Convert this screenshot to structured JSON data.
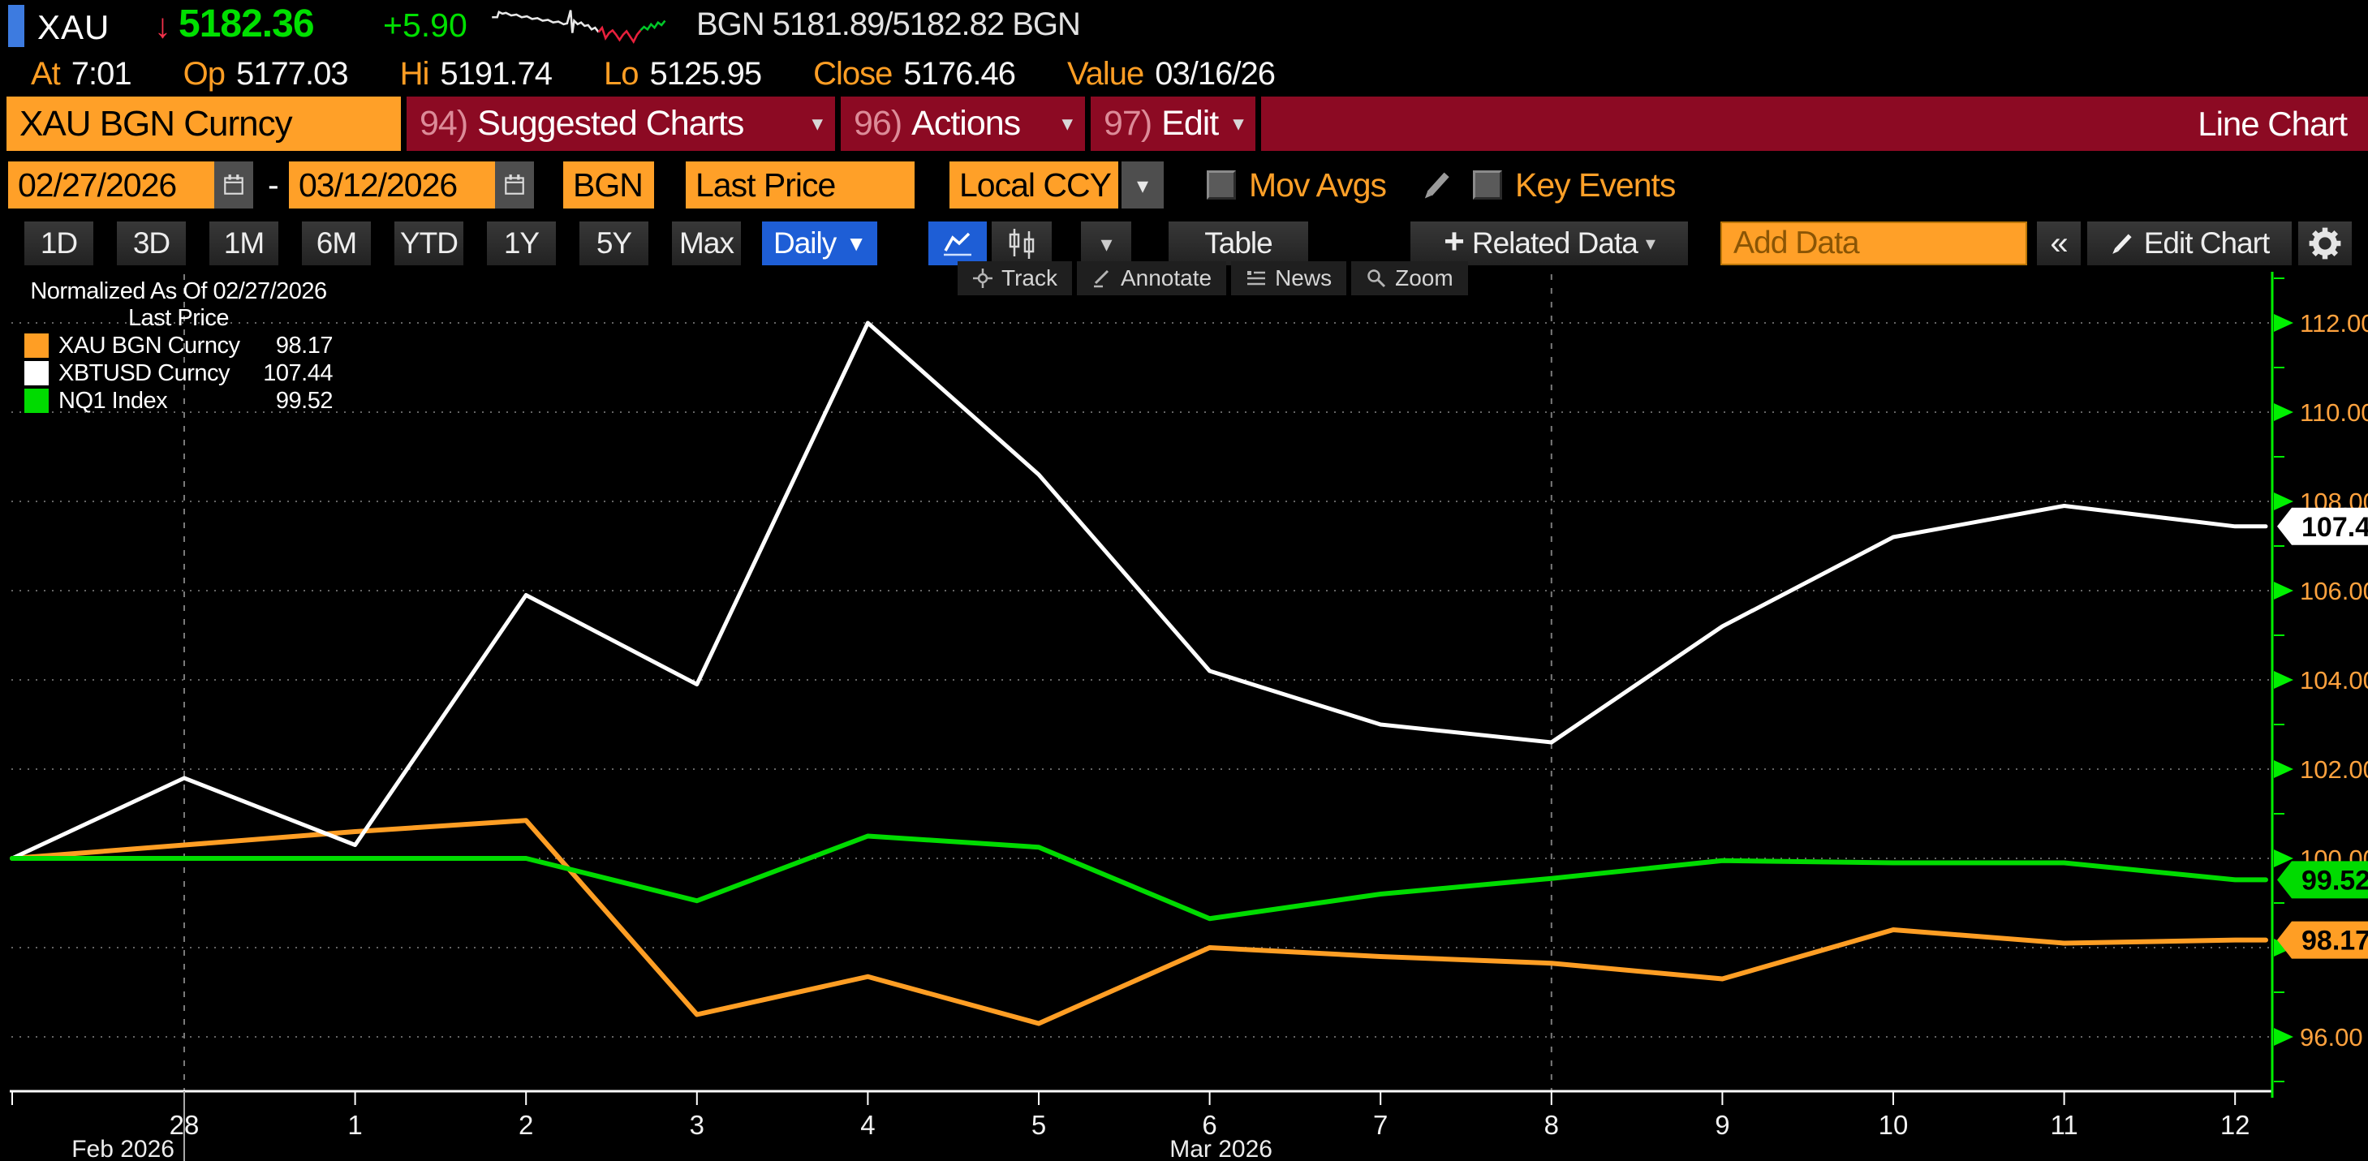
{
  "header": {
    "ticker": "XAU",
    "price": "5182.36",
    "change": "+5.90",
    "quote": "BGN 5181.89/5182.82 BGN",
    "stats": [
      {
        "label": "At",
        "value": "7:01"
      },
      {
        "label": "Op",
        "value": "5177.03"
      },
      {
        "label": "Hi",
        "value": "5191.74"
      },
      {
        "label": "Lo",
        "value": "5125.95"
      },
      {
        "label": "Close",
        "value": "5176.46"
      },
      {
        "label": "Value",
        "value": "03/16/26"
      }
    ]
  },
  "menubar": {
    "security": "XAU BGN Curncy",
    "items": [
      {
        "num": "94)",
        "label": "Suggested Charts"
      },
      {
        "num": "96)",
        "label": "Actions"
      },
      {
        "num": "97)",
        "label": "Edit"
      }
    ],
    "view_label": "Line Chart",
    "bg": "#8C0A23"
  },
  "fields": {
    "date_from": "02/27/2026",
    "date_separator": "-",
    "date_to": "03/12/2026",
    "source": "BGN",
    "price_field": "Last Price",
    "currency": "Local CCY",
    "mov_avgs_label": "Mov Avgs",
    "key_events_label": "Key Events"
  },
  "toolbar": {
    "ranges": [
      "1D",
      "3D",
      "1M",
      "6M",
      "YTD",
      "1Y",
      "5Y",
      "Max"
    ],
    "period": "Daily",
    "table_label": "Table",
    "related_data_label": "Related Data",
    "add_data_placeholder": "Add Data",
    "edit_chart_label": "Edit Chart"
  },
  "chart_tools": [
    {
      "label": "Track"
    },
    {
      "label": "Annotate"
    },
    {
      "label": "News"
    },
    {
      "label": "Zoom"
    }
  ],
  "legend": {
    "title": "Normalized As Of 02/27/2026",
    "subtitle": "Last Price",
    "series": [
      {
        "name": "XAU BGN Curncy",
        "value": "98.17",
        "color": "#FF9E24"
      },
      {
        "name": "XBTUSD Curncy",
        "value": "107.44",
        "color": "#FFFFFF"
      },
      {
        "name": "NQ1 Index",
        "value": "99.52",
        "color": "#00DB00"
      }
    ]
  },
  "icons": {
    "dropdown_arrow": "▾",
    "daily_caret": "▼",
    "down_arrow": "↓",
    "collapse": "«",
    "plus": "+"
  },
  "chart_data": {
    "type": "line",
    "title": "Normalized As Of 02/27/2026",
    "normalize_basis": "Last Price",
    "dates": [
      "02/27",
      "02/28",
      "03/01",
      "03/02",
      "03/03",
      "03/04",
      "03/05",
      "03/06",
      "03/07",
      "03/08",
      "03/09",
      "03/10",
      "03/11",
      "03/12"
    ],
    "x_tick_labels": [
      "28",
      "1",
      "2",
      "3",
      "4",
      "5",
      "6",
      "7",
      "8",
      "9",
      "10",
      "11",
      "12"
    ],
    "month_labels": [
      {
        "text": "Feb 2026",
        "point": 1
      },
      {
        "text": "Mar 2026",
        "point": 7
      }
    ],
    "week_separator_points": [
      1,
      9
    ],
    "y_axis": {
      "min": 96,
      "max": 112,
      "major_step": 2,
      "minor_step": 1,
      "axis_color": "#00F000",
      "label_color": "#FFA23E"
    },
    "gridline_color": "#646464",
    "series": [
      {
        "name": "XAU BGN Curncy",
        "color": "#FF9E24",
        "width": 6,
        "values": [
          100.0,
          100.3,
          100.6,
          100.85,
          96.5,
          97.35,
          96.3,
          98.0,
          97.8,
          97.65,
          97.3,
          98.4,
          98.1,
          98.17
        ],
        "tag": {
          "text": "98.17",
          "bg": "#FF9E24",
          "fg": "#000000"
        }
      },
      {
        "name": "XBTUSD Curncy",
        "color": "#FFFFFF",
        "width": 5,
        "values": [
          100.0,
          101.8,
          100.3,
          105.9,
          103.9,
          112.0,
          108.6,
          104.2,
          103.0,
          102.6,
          105.2,
          107.2,
          107.9,
          107.44
        ],
        "tag": {
          "text": "107.44",
          "bg": "#FFFFFF",
          "fg": "#000000"
        }
      },
      {
        "name": "NQ1 Index",
        "color": "#00DB00",
        "width": 6,
        "values": [
          100.0,
          100.0,
          100.0,
          100.0,
          99.05,
          100.5,
          100.25,
          98.65,
          99.2,
          99.55,
          99.95,
          99.9,
          99.9,
          99.52
        ],
        "tag": {
          "text": "99.52",
          "bg": "#00DB00",
          "fg": "#000000"
        }
      }
    ]
  }
}
